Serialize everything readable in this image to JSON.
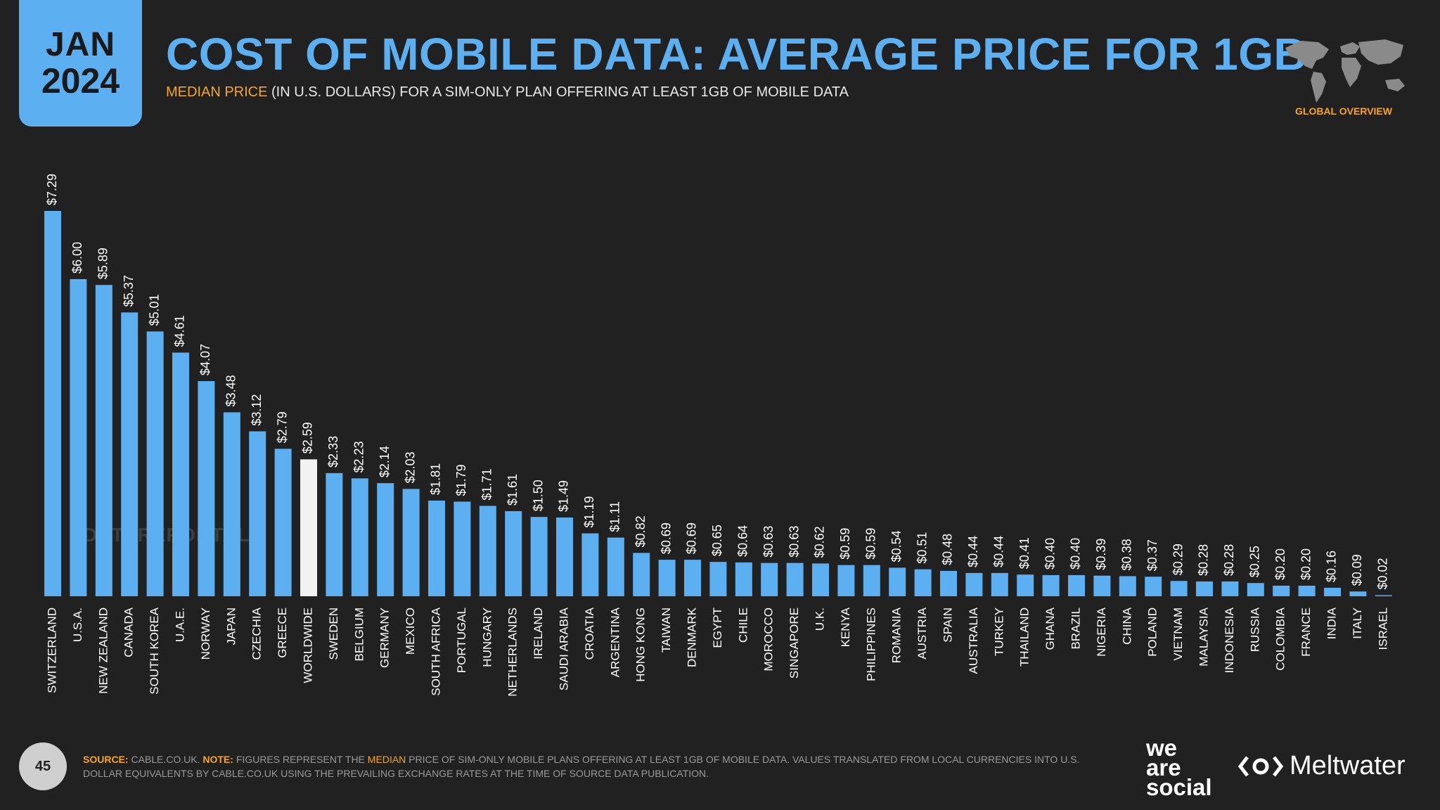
{
  "header": {
    "month": "JAN",
    "year": "2024",
    "title": "COST OF MOBILE DATA: AVERAGE PRICE FOR 1GB",
    "subtitle_highlight": "MEDIAN PRICE",
    "subtitle_rest": " (IN U.S. DOLLARS) FOR A SIM-ONLY PLAN OFFERING AT LEAST 1GB OF MOBILE DATA",
    "region_label": "GLOBAL OVERVIEW"
  },
  "watermark": "DATAREPORTAL",
  "footer": {
    "page_number": "45",
    "source_label": "SOURCE:",
    "source_text": " CABLE.CO.UK. ",
    "note_label": "NOTE:",
    "note_text_1": " FIGURES REPRESENT THE ",
    "note_highlight": "MEDIAN",
    "note_text_2": " PRICE OF SIM-ONLY MOBILE PLANS OFFERING AT LEAST 1GB OF MOBILE DATA. VALUES TRANSLATED FROM LOCAL CURRENCIES INTO U.S. DOLLAR EQUIVALENTS BY CABLE.CO.UK USING THE PREVAILING EXCHANGE RATES AT THE TIME OF SOURCE DATA PUBLICATION.",
    "brand_we": "we",
    "brand_are": "are",
    "brand_social": "social",
    "brand_meltwater": "Meltwater"
  },
  "colors": {
    "background": "#212121",
    "bar": "#5cb0f2",
    "highlight_bar": "#f2f2f2",
    "accent": "#f5a623"
  },
  "chart_data": {
    "type": "bar",
    "categories": [
      "SWITZERLAND",
      "U.S.A.",
      "NEW ZEALAND",
      "CANADA",
      "SOUTH KOREA",
      "U.A.E.",
      "NORWAY",
      "JAPAN",
      "CZECHIA",
      "GREECE",
      "WORLDWIDE",
      "SWEDEN",
      "BELGIUM",
      "GERMANY",
      "MEXICO",
      "SOUTH AFRICA",
      "PORTUGAL",
      "HUNGARY",
      "NETHERLANDS",
      "IRELAND",
      "SAUDI ARABIA",
      "CROATIA",
      "ARGENTINA",
      "HONG KONG",
      "TAIWAN",
      "DENMARK",
      "EGYPT",
      "CHILE",
      "MOROCCO",
      "SINGAPORE",
      "U.K.",
      "KENYA",
      "PHILIPPINES",
      "ROMANIA",
      "AUSTRIA",
      "SPAIN",
      "AUSTRALIA",
      "TURKEY",
      "THAILAND",
      "GHANA",
      "BRAZIL",
      "NIGERIA",
      "CHINA",
      "POLAND",
      "VIETNAM",
      "MALAYSIA",
      "INDONESIA",
      "RUSSIA",
      "COLOMBIA",
      "FRANCE",
      "INDIA",
      "ITALY",
      "ISRAEL"
    ],
    "values": [
      7.29,
      6.0,
      5.89,
      5.37,
      5.01,
      4.61,
      4.07,
      3.48,
      3.12,
      2.79,
      2.59,
      2.33,
      2.23,
      2.14,
      2.03,
      1.81,
      1.79,
      1.71,
      1.61,
      1.5,
      1.49,
      1.19,
      1.11,
      0.82,
      0.69,
      0.69,
      0.65,
      0.64,
      0.63,
      0.63,
      0.62,
      0.59,
      0.59,
      0.54,
      0.51,
      0.48,
      0.44,
      0.44,
      0.41,
      0.4,
      0.4,
      0.39,
      0.38,
      0.37,
      0.29,
      0.28,
      0.28,
      0.25,
      0.2,
      0.2,
      0.16,
      0.09,
      0.02
    ],
    "labels": [
      "$7.29",
      "$6.00",
      "$5.89",
      "$5.37",
      "$5.01",
      "$4.61",
      "$4.07",
      "$3.48",
      "$3.12",
      "$2.79",
      "$2.59",
      "$2.33",
      "$2.23",
      "$2.14",
      "$2.03",
      "$1.81",
      "$1.79",
      "$1.71",
      "$1.61",
      "$1.50",
      "$1.49",
      "$1.19",
      "$1.11",
      "$0.82",
      "$0.69",
      "$0.69",
      "$0.65",
      "$0.64",
      "$0.63",
      "$0.63",
      "$0.62",
      "$0.59",
      "$0.59",
      "$0.54",
      "$0.51",
      "$0.48",
      "$0.44",
      "$0.44",
      "$0.41",
      "$0.40",
      "$0.40",
      "$0.39",
      "$0.38",
      "$0.37",
      "$0.29",
      "$0.28",
      "$0.28",
      "$0.25",
      "$0.20",
      "$0.20",
      "$0.16",
      "$0.09",
      "$0.02"
    ],
    "highlight_category": "WORLDWIDE",
    "title": "COST OF MOBILE DATA: AVERAGE PRICE FOR 1GB",
    "xlabel": "",
    "ylabel": "",
    "ylim": [
      0,
      7.29
    ],
    "grid": false,
    "legend": "none"
  }
}
